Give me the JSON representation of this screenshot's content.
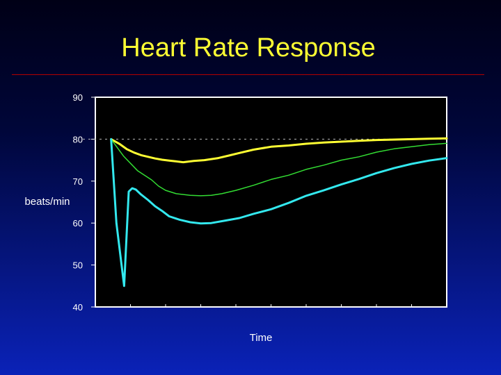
{
  "slide": {
    "title": "Heart Rate Response"
  },
  "chart_data": {
    "type": "line",
    "title": "Heart Rate Response",
    "xlabel": "Time",
    "ylabel": "beats/min",
    "ylim": [
      40,
      90
    ],
    "y_ticks": [
      40,
      50,
      60,
      70,
      80,
      90
    ],
    "xlim": [
      0,
      100
    ],
    "x_minor_ticks": 10,
    "grid": false,
    "reference_line": {
      "y": 80,
      "style": "dashed",
      "color": "#bbbbbb"
    },
    "plot_background": "#000000",
    "series": [
      {
        "color": "#ffff33",
        "stroke_width": 3,
        "x": [
          4.5,
          7,
          9,
          11,
          13,
          15,
          17,
          19,
          21,
          23,
          25,
          28,
          31,
          35,
          38,
          41,
          45,
          50,
          55,
          60,
          65,
          70,
          75,
          80,
          85,
          90,
          95,
          100
        ],
        "y": [
          80,
          78.8,
          77.6,
          76.8,
          76.2,
          75.8,
          75.4,
          75.1,
          74.9,
          74.7,
          74.5,
          74.8,
          75.0,
          75.5,
          76.1,
          76.7,
          77.5,
          78.2,
          78.5,
          78.9,
          79.2,
          79.4,
          79.6,
          79.8,
          79.9,
          80.0,
          80.1,
          80.2
        ]
      },
      {
        "color": "#33dd33",
        "stroke_width": 1.5,
        "x": [
          4.5,
          8,
          12,
          16,
          18,
          20,
          23,
          27,
          30,
          33,
          36,
          40,
          45,
          50,
          55,
          60,
          65,
          70,
          75,
          80,
          85,
          90,
          95,
          100
        ],
        "y": [
          80,
          76.0,
          72.5,
          70.3,
          68.8,
          67.8,
          67.0,
          66.6,
          66.5,
          66.6,
          67.0,
          67.8,
          69.0,
          70.4,
          71.4,
          72.8,
          73.8,
          75.0,
          75.8,
          76.9,
          77.7,
          78.2,
          78.7,
          79.0
        ]
      },
      {
        "color": "#33e8ee",
        "stroke_width": 3,
        "x": [
          4.5,
          6,
          8.2,
          9.5,
          10.5,
          11.5,
          13,
          15,
          17,
          19,
          21,
          24,
          27,
          30,
          33,
          37,
          41,
          45,
          50,
          55,
          60,
          65,
          70,
          75,
          80,
          85,
          90,
          95,
          100
        ],
        "y": [
          80,
          60,
          45.0,
          67.5,
          68.3,
          68.0,
          66.8,
          65.5,
          64.0,
          62.9,
          61.6,
          60.8,
          60.2,
          59.9,
          60.0,
          60.6,
          61.2,
          62.2,
          63.3,
          64.8,
          66.5,
          67.8,
          69.2,
          70.5,
          71.9,
          73.1,
          74.1,
          74.9,
          75.5
        ]
      }
    ]
  }
}
